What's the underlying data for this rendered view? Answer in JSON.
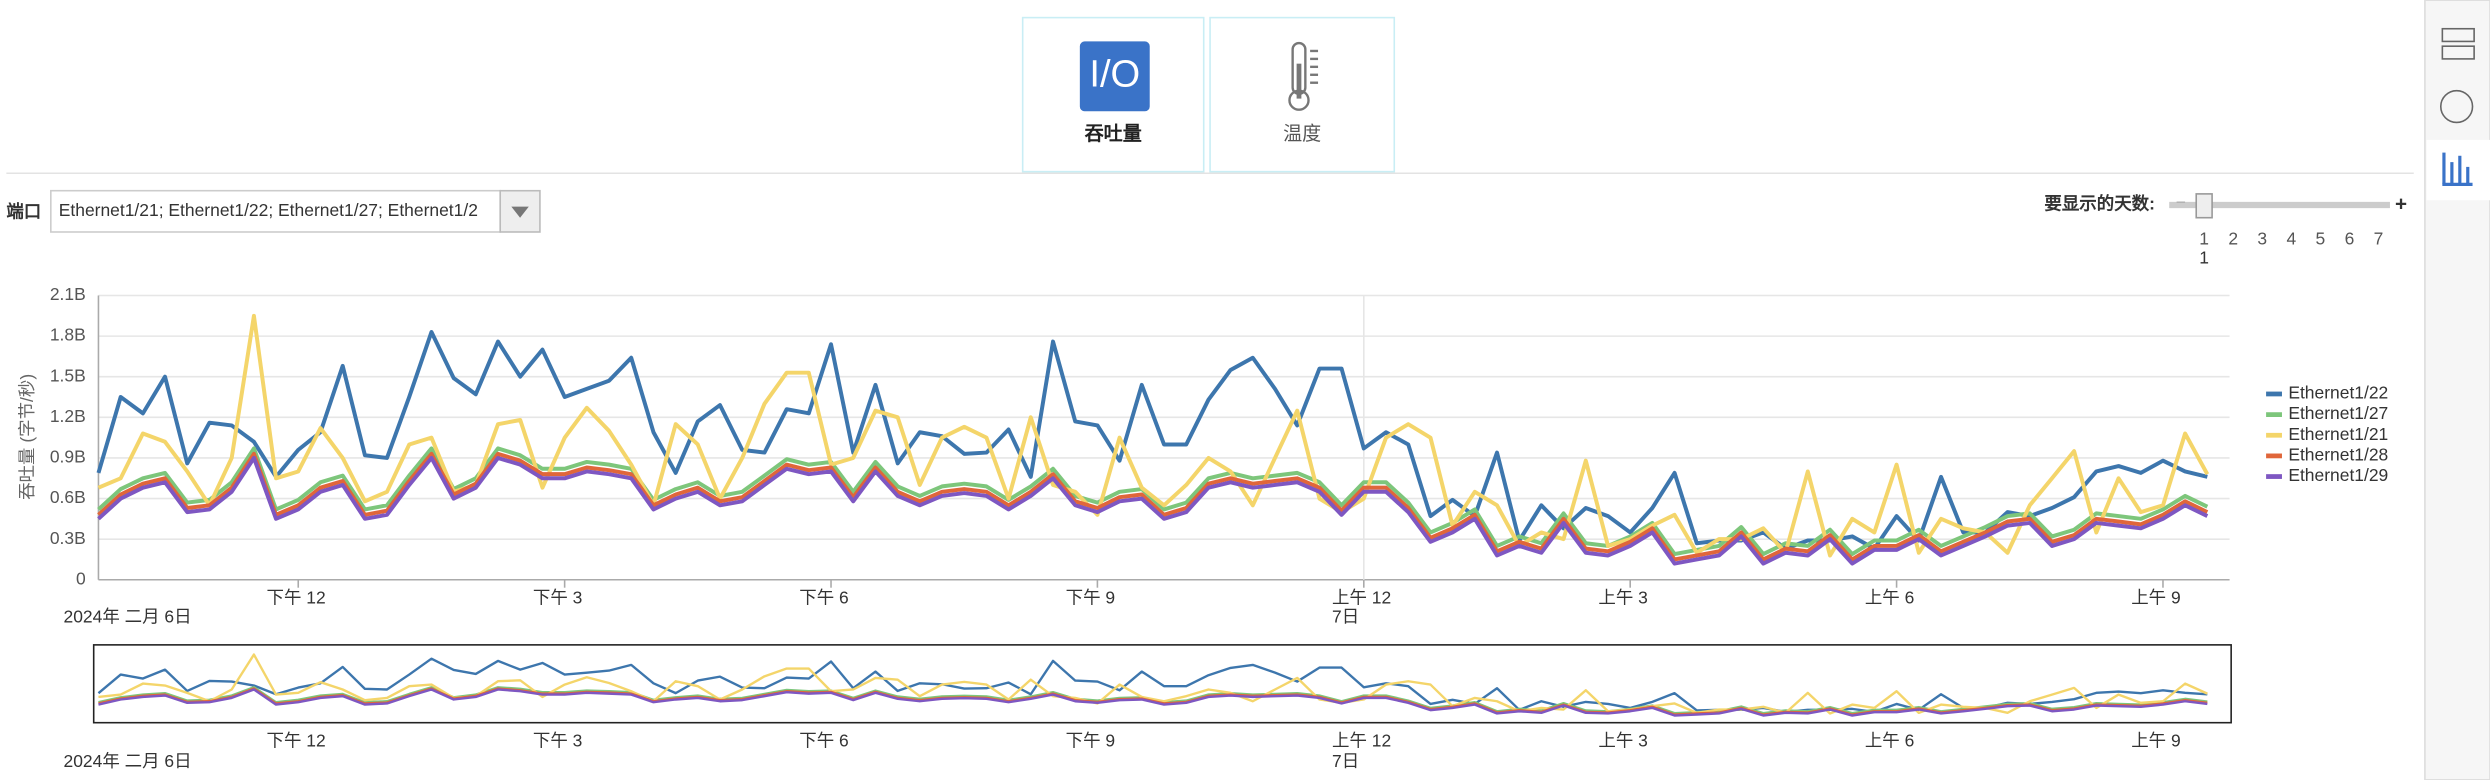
{
  "tabs": [
    {
      "icon": "I/O",
      "label": "吞吐量"
    },
    {
      "label": "温度"
    }
  ],
  "port_label": "端口",
  "port_value": "Ethernet1/21; Ethernet1/22; Ethernet1/27; Ethernet1/2",
  "days_label": "要显示的天数:",
  "days_plus": "+",
  "days": [
    1,
    2,
    3,
    4,
    5,
    6,
    7
  ],
  "days_selected": 1,
  "chart_data": {
    "type": "line",
    "y_label": "吞吐量 (字节/秒)",
    "start_date": "2024年 二月 6日",
    "next_day": "7日",
    "x": [
      9.75,
      10,
      10.25,
      10.5,
      10.75,
      11,
      11.25,
      11.5,
      11.75,
      12,
      12.25,
      12.5,
      12.75,
      13,
      13.25,
      13.5,
      13.75,
      14,
      14.25,
      14.5,
      14.75,
      15,
      15.25,
      15.5,
      15.75,
      16,
      16.25,
      16.5,
      16.75,
      17,
      17.25,
      17.5,
      17.75,
      18,
      18.25,
      18.5,
      18.75,
      19,
      19.25,
      19.5,
      19.75,
      20,
      20.25,
      20.5,
      20.75,
      21,
      21.25,
      21.5,
      21.75,
      22,
      22.25,
      22.5,
      22.75,
      23,
      23.25,
      23.5,
      23.75,
      24,
      24.25,
      24.5,
      24.75,
      25,
      25.25,
      25.5,
      25.75,
      26,
      26.25,
      26.5,
      26.75,
      27,
      27.25,
      27.5,
      27.75,
      28,
      28.25,
      28.5,
      28.75,
      29,
      29.25,
      29.5,
      29.75,
      30,
      30.25,
      30.5,
      30.75,
      31,
      31.25,
      31.5,
      31.75,
      32,
      32.25,
      32.5,
      32.75,
      33,
      33.25,
      33.5
    ],
    "xlim": [
      9.75,
      33.75
    ],
    "xticks": [
      {
        "value": 12,
        "label": "下午 12"
      },
      {
        "value": 15,
        "label": "下午 3"
      },
      {
        "value": 18,
        "label": "下午 6"
      },
      {
        "value": 21,
        "label": "下午 9"
      },
      {
        "value": 24,
        "label": "上午 12"
      },
      {
        "value": 27,
        "label": "上午 3"
      },
      {
        "value": 30,
        "label": "上午 6"
      },
      {
        "value": 33,
        "label": "上午 9"
      }
    ],
    "ylim": [
      0,
      2.1
    ],
    "yticks": [
      0,
      {
        "value": 0.3,
        "label": "0.3B"
      },
      {
        "value": 0.6,
        "label": "0.6B"
      },
      {
        "value": 0.9,
        "label": "0.9B"
      },
      {
        "value": 1.2,
        "label": "1.2B"
      },
      {
        "value": 1.5,
        "label": "1.5B"
      },
      {
        "value": 1.8,
        "label": "1.8B"
      },
      {
        "value": 2.1,
        "label": "2.1B"
      }
    ],
    "grid": true,
    "legend": "right",
    "series": [
      {
        "name": "Ethernet1/22",
        "color": "#3d76ad",
        "values": [
          0.79,
          1.35,
          1.23,
          1.5,
          0.86,
          1.16,
          1.14,
          1.02,
          0.76,
          0.96,
          1.09,
          1.58,
          0.92,
          0.9,
          1.35,
          1.83,
          1.49,
          1.37,
          1.76,
          1.5,
          1.7,
          1.35,
          1.41,
          1.47,
          1.64,
          1.09,
          0.79,
          1.17,
          1.29,
          0.96,
          0.94,
          1.26,
          1.23,
          1.74,
          0.94,
          1.44,
          0.86,
          1.09,
          1.06,
          0.93,
          0.94,
          1.11,
          0.76,
          1.76,
          1.17,
          1.14,
          0.88,
          1.44,
          1.0,
          1.0,
          1.33,
          1.55,
          1.64,
          1.41,
          1.14,
          1.56,
          1.56,
          0.97,
          1.09,
          1.0,
          0.47,
          0.59,
          0.47,
          0.94,
          0.29,
          0.55,
          0.38,
          0.53,
          0.47,
          0.35,
          0.53,
          0.79,
          0.27,
          0.29,
          0.29,
          0.35,
          0.23,
          0.29,
          0.29,
          0.32,
          0.23,
          0.47,
          0.29,
          0.76,
          0.35,
          0.35,
          0.5,
          0.47,
          0.53,
          0.61,
          0.8,
          0.84,
          0.79,
          0.88,
          0.8,
          0.76
        ]
      },
      {
        "name": "Ethernet1/27",
        "color": "#7dc67b",
        "values": [
          0.52,
          0.67,
          0.75,
          0.79,
          0.57,
          0.59,
          0.72,
          0.97,
          0.52,
          0.59,
          0.72,
          0.77,
          0.52,
          0.55,
          0.77,
          0.97,
          0.67,
          0.75,
          0.97,
          0.92,
          0.82,
          0.82,
          0.87,
          0.85,
          0.82,
          0.59,
          0.67,
          0.72,
          0.62,
          0.65,
          0.77,
          0.89,
          0.85,
          0.87,
          0.65,
          0.87,
          0.69,
          0.62,
          0.69,
          0.71,
          0.69,
          0.59,
          0.69,
          0.82,
          0.62,
          0.57,
          0.65,
          0.67,
          0.52,
          0.57,
          0.75,
          0.79,
          0.75,
          0.77,
          0.79,
          0.72,
          0.55,
          0.72,
          0.72,
          0.57,
          0.35,
          0.42,
          0.52,
          0.25,
          0.32,
          0.27,
          0.49,
          0.27,
          0.25,
          0.32,
          0.42,
          0.19,
          0.22,
          0.25,
          0.39,
          0.19,
          0.27,
          0.25,
          0.37,
          0.19,
          0.29,
          0.29,
          0.37,
          0.25,
          0.32,
          0.39,
          0.47,
          0.49,
          0.32,
          0.37,
          0.49,
          0.47,
          0.45,
          0.52,
          0.62,
          0.54
        ]
      },
      {
        "name": "Ethernet1/21",
        "color": "#f4d56a",
        "values": [
          0.68,
          0.75,
          1.08,
          1.02,
          0.8,
          0.55,
          0.9,
          1.95,
          0.75,
          0.8,
          1.12,
          0.9,
          0.58,
          0.65,
          1.0,
          1.05,
          0.65,
          0.7,
          1.15,
          1.18,
          0.68,
          1.05,
          1.27,
          1.1,
          0.85,
          0.55,
          1.15,
          1.0,
          0.6,
          0.9,
          1.3,
          1.53,
          1.53,
          0.85,
          0.9,
          1.25,
          1.2,
          0.7,
          1.05,
          1.13,
          1.05,
          0.6,
          1.2,
          0.7,
          0.65,
          0.48,
          1.05,
          0.68,
          0.55,
          0.7,
          0.9,
          0.8,
          0.55,
          0.9,
          1.25,
          0.6,
          0.5,
          0.6,
          1.05,
          1.15,
          1.05,
          0.4,
          0.65,
          0.55,
          0.25,
          0.35,
          0.3,
          0.88,
          0.25,
          0.3,
          0.4,
          0.48,
          0.2,
          0.3,
          0.3,
          0.38,
          0.2,
          0.8,
          0.18,
          0.45,
          0.35,
          0.85,
          0.2,
          0.45,
          0.38,
          0.35,
          0.2,
          0.55,
          0.75,
          0.95,
          0.35,
          0.75,
          0.5,
          0.55,
          1.08,
          0.78
        ]
      },
      {
        "name": "Ethernet1/28",
        "color": "#e0663a",
        "values": [
          0.48,
          0.63,
          0.71,
          0.75,
          0.53,
          0.55,
          0.68,
          0.93,
          0.48,
          0.55,
          0.68,
          0.73,
          0.48,
          0.51,
          0.73,
          0.93,
          0.63,
          0.71,
          0.93,
          0.88,
          0.78,
          0.78,
          0.83,
          0.81,
          0.78,
          0.55,
          0.63,
          0.68,
          0.58,
          0.61,
          0.73,
          0.85,
          0.81,
          0.83,
          0.61,
          0.83,
          0.65,
          0.58,
          0.65,
          0.67,
          0.65,
          0.55,
          0.65,
          0.78,
          0.58,
          0.53,
          0.61,
          0.63,
          0.48,
          0.53,
          0.71,
          0.75,
          0.71,
          0.73,
          0.75,
          0.68,
          0.51,
          0.68,
          0.68,
          0.53,
          0.31,
          0.38,
          0.48,
          0.21,
          0.28,
          0.23,
          0.45,
          0.23,
          0.21,
          0.28,
          0.38,
          0.15,
          0.18,
          0.21,
          0.35,
          0.15,
          0.23,
          0.21,
          0.33,
          0.15,
          0.25,
          0.25,
          0.33,
          0.21,
          0.28,
          0.35,
          0.43,
          0.45,
          0.28,
          0.33,
          0.45,
          0.43,
          0.41,
          0.48,
          0.58,
          0.5
        ]
      },
      {
        "name": "Ethernet1/29",
        "color": "#7e57c2",
        "values": [
          0.45,
          0.6,
          0.68,
          0.72,
          0.5,
          0.52,
          0.65,
          0.9,
          0.45,
          0.52,
          0.65,
          0.7,
          0.45,
          0.48,
          0.7,
          0.9,
          0.6,
          0.68,
          0.9,
          0.85,
          0.75,
          0.75,
          0.8,
          0.78,
          0.75,
          0.52,
          0.6,
          0.65,
          0.55,
          0.58,
          0.7,
          0.82,
          0.78,
          0.8,
          0.58,
          0.8,
          0.62,
          0.55,
          0.62,
          0.64,
          0.62,
          0.52,
          0.62,
          0.75,
          0.55,
          0.5,
          0.58,
          0.6,
          0.45,
          0.5,
          0.68,
          0.72,
          0.68,
          0.7,
          0.72,
          0.65,
          0.48,
          0.65,
          0.65,
          0.5,
          0.28,
          0.35,
          0.45,
          0.18,
          0.25,
          0.2,
          0.42,
          0.2,
          0.18,
          0.25,
          0.35,
          0.12,
          0.15,
          0.18,
          0.32,
          0.12,
          0.2,
          0.18,
          0.3,
          0.12,
          0.22,
          0.22,
          0.3,
          0.18,
          0.25,
          0.32,
          0.4,
          0.42,
          0.25,
          0.3,
          0.42,
          0.4,
          0.38,
          0.45,
          0.55,
          0.47
        ]
      }
    ]
  }
}
